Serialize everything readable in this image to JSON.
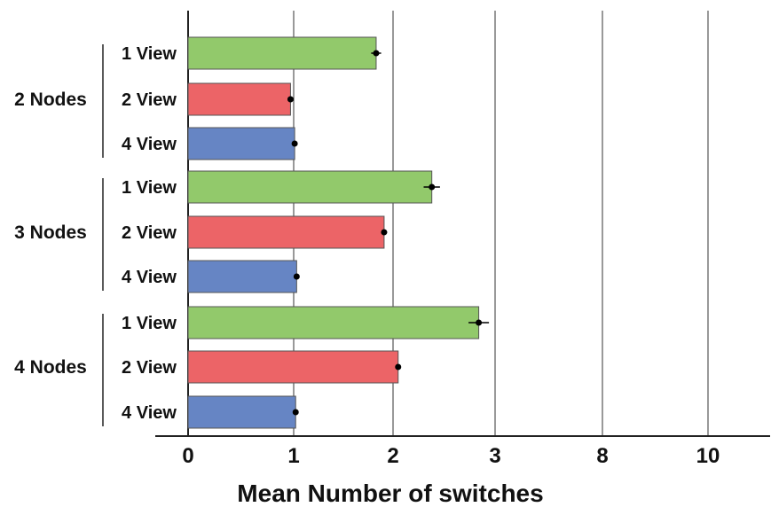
{
  "chart_data": {
    "type": "bar",
    "orientation": "horizontal",
    "xlabel": "Mean Number of switches",
    "ylabel": "",
    "x_ticks": [
      "0",
      "1",
      "2",
      "3",
      "8",
      "10"
    ],
    "grid": true,
    "groups": [
      {
        "label": "2 Nodes",
        "bars": [
          {
            "label": "1 View",
            "value": 1.83,
            "error": 0.05
          },
          {
            "label": "2 View",
            "value": 0.97,
            "error": 0.01
          },
          {
            "label": "4 View",
            "value": 1.01,
            "error": 0.01
          }
        ]
      },
      {
        "label": "3 Nodes",
        "bars": [
          {
            "label": "1 View",
            "value": 2.38,
            "error": 0.08
          },
          {
            "label": "2 View",
            "value": 1.91,
            "error": 0.03
          },
          {
            "label": "4 View",
            "value": 1.03,
            "error": 0.01
          }
        ]
      },
      {
        "label": "4 Nodes",
        "bars": [
          {
            "label": "1 View",
            "value": 2.84,
            "error": 0.1
          },
          {
            "label": "2 View",
            "value": 2.05,
            "error": 0.01
          },
          {
            "label": "4 View",
            "value": 1.02,
            "error": 0.01
          }
        ]
      }
    ],
    "colors": {
      "1 View": "#92c96b",
      "2 View": "#ec6467",
      "4 View": "#6685c4"
    }
  }
}
